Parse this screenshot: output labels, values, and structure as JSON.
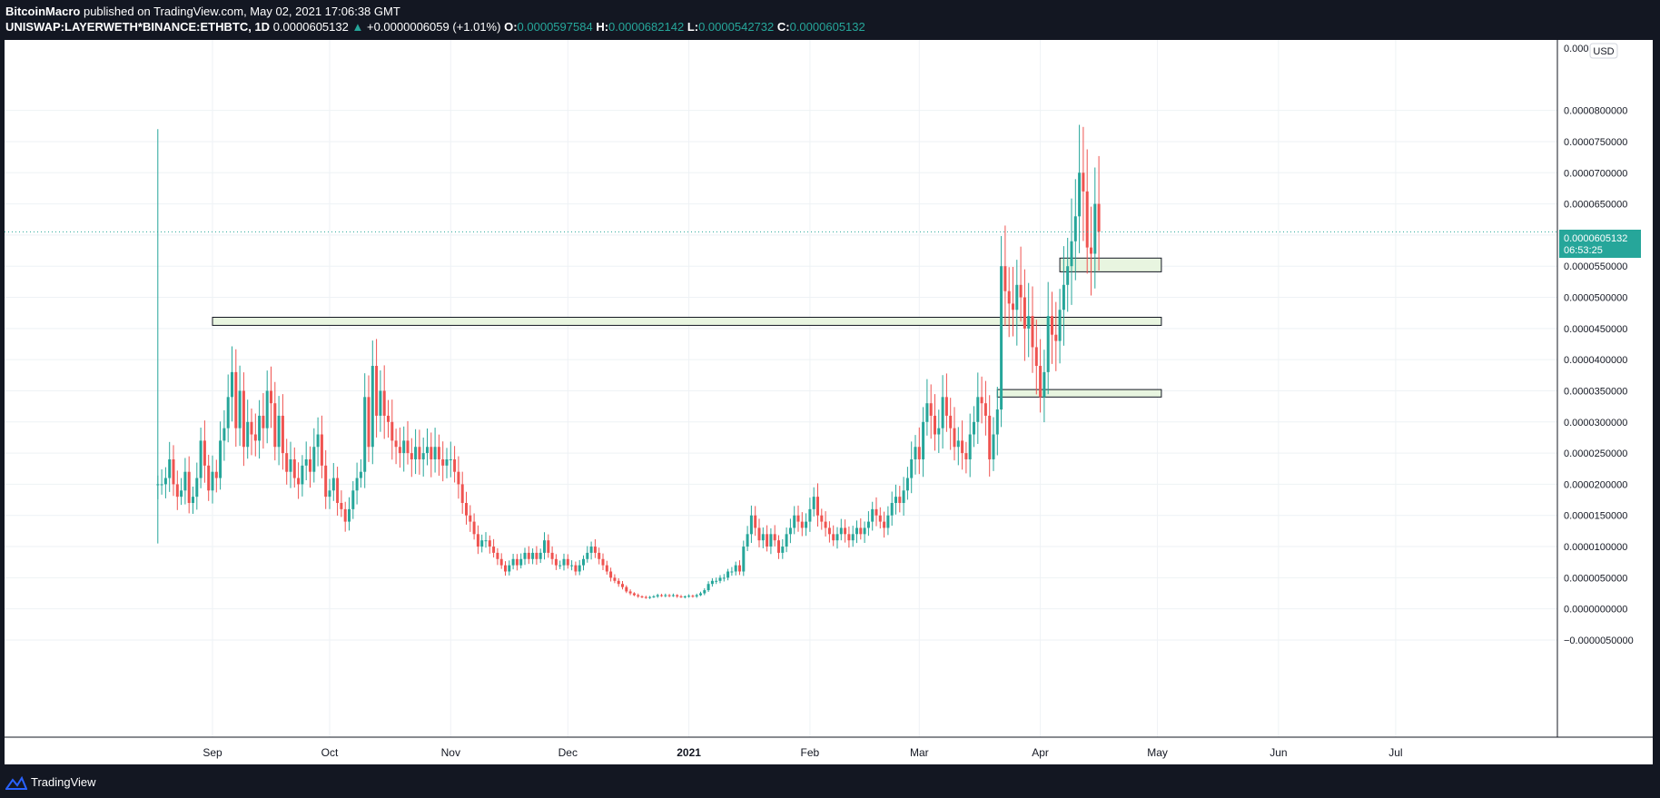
{
  "header": {
    "publisher": "BitcoinMacro",
    "published_text": "published on TradingView.com, May 02, 2021 17:06:38 GMT",
    "symbol": "UNISWAP:LAYERWETH*BINANCE:ETHBTC, 1D",
    "last_price": "0.0000605132",
    "change_arrow": "▲",
    "change": "+0.0000006059 (+1.01%)",
    "o_label": "O:",
    "o_value": "0.0000597584",
    "h_label": "H:",
    "h_value": "0.0000682142",
    "l_label": "L:",
    "l_value": "0.0000542732",
    "c_label": "C:",
    "c_value": "0.0000605132"
  },
  "price_scale": {
    "currency": "USD",
    "price_label": "0.0000605132",
    "countdown": "06:53:25"
  },
  "footer": {
    "brand": "TradingView"
  },
  "colors": {
    "up": "#26a69a",
    "down": "#ef5350",
    "zone_fill": "#e8f5e0",
    "grid": "#eef2f5",
    "background": "#ffffff",
    "frame": "#131722"
  },
  "chart_data": {
    "type": "candlestick",
    "title": "UNISWAP:LAYERWETH*BINANCE:ETHBTC, 1D",
    "ylim": [
      -5e-06,
      9e-05
    ],
    "y_ticks": [
      "0.0000800000",
      "0.0000750000",
      "0.0000700000",
      "0.0000650000",
      "0.0000600000",
      "0.0000550000",
      "0.0000500000",
      "0.0000450000",
      "0.0000400000",
      "0.0000350000",
      "0.0000300000",
      "0.0000250000",
      "0.0000200000",
      "0.0000150000",
      "0.0000100000",
      "0.0000050000",
      "0.0000000000",
      "−0.0000050000"
    ],
    "y_tick_values": [
      8e-05,
      7.5e-05,
      7e-05,
      6.5e-05,
      6e-05,
      5.5e-05,
      5e-05,
      4.5e-05,
      4e-05,
      3.5e-05,
      3e-05,
      2.5e-05,
      2e-05,
      1.5e-05,
      1e-05,
      5e-06,
      0,
      -5e-06
    ],
    "top_tick_partial": "0.000",
    "x_labels": [
      "Sep",
      "Oct",
      "Nov",
      "Dec",
      "2021",
      "Feb",
      "Mar",
      "Apr",
      "May",
      "Jun",
      "Jul"
    ],
    "x_label_days": [
      0,
      30,
      61,
      91,
      122,
      153,
      181,
      212,
      242,
      273,
      303
    ],
    "first_day": -14,
    "closes": [
      2e-05,
      2e-05,
      2.1e-05,
      2.4e-05,
      2e-05,
      1.8e-05,
      1.9e-05,
      2.2e-05,
      1.7e-05,
      1.8e-05,
      2.1e-05,
      2.7e-05,
      2.3e-05,
      1.9e-05,
      2.2e-05,
      2.1e-05,
      2.7e-05,
      2.9e-05,
      3.4e-05,
      3.8e-05,
      2.9e-05,
      3.5e-05,
      2.6e-05,
      3e-05,
      2.8e-05,
      2.7e-05,
      3.1e-05,
      2.9e-05,
      3.5e-05,
      3.3e-05,
      2.6e-05,
      3.1e-05,
      2.5e-05,
      2.2e-05,
      2.4e-05,
      2.1e-05,
      2e-05,
      2.3e-05,
      2.4e-05,
      2.2e-05,
      2.6e-05,
      2.8e-05,
      2.3e-05,
      1.8e-05,
      1.9e-05,
      2.1e-05,
      1.7e-05,
      1.6e-05,
      1.4e-05,
      1.6e-05,
      1.9e-05,
      2.1e-05,
      2.2e-05,
      3.4e-05,
      2.6e-05,
      3.9e-05,
      3.1e-05,
      3.5e-05,
      3.1e-05,
      3e-05,
      2.7e-05,
      2.6e-05,
      2.5e-05,
      2.7e-05,
      2.5e-05,
      2.4e-05,
      2.6e-05,
      2.4e-05,
      2.5e-05,
      2.6e-05,
      2.4e-05,
      2.6e-05,
      2.4e-05,
      2.3e-05,
      2.4e-05,
      2.4e-05,
      2.2e-05,
      2e-05,
      1.7e-05,
      1.5e-05,
      1.4e-05,
      1.2e-05,
      1e-05,
      1.1e-05,
      1.1e-05,
      1e-05,
      9e-06,
      8e-06,
      7e-06,
      6e-06,
      7e-06,
      8e-06,
      7e-06,
      8e-06,
      9e-06,
      8e-06,
      9e-06,
      8e-06,
      9e-06,
      1.1e-05,
      9e-06,
      8e-06,
      7e-06,
      7e-06,
      8e-06,
      7e-06,
      7e-06,
      6e-06,
      7e-06,
      8e-06,
      9e-06,
      1e-05,
      9e-06,
      8e-06,
      7e-06,
      6e-06,
      5e-06,
      4.5e-06,
      4e-06,
      3.5e-06,
      2.8e-06,
      2.5e-06,
      2.2e-06,
      2e-06,
      1.9e-06,
      1.8e-06,
      1.9e-06,
      2e-06,
      2.2e-06,
      2.1e-06,
      2.2e-06,
      2.1e-06,
      2.2e-06,
      2e-06,
      1.9e-06,
      2e-06,
      2.1e-06,
      2e-06,
      2.2e-06,
      2.5e-06,
      3e-06,
      4e-06,
      4.5e-06,
      4.5e-06,
      5e-06,
      5e-06,
      6e-06,
      6e-06,
      7e-06,
      6e-06,
      1e-05,
      1.2e-05,
      1.5e-05,
      1.3e-05,
      1.1e-05,
      1.2e-05,
      1e-05,
      1.2e-05,
      1.1e-05,
      9e-06,
      1e-05,
      1.2e-05,
      1.3e-05,
      1.5e-05,
      1.4e-05,
      1.3e-05,
      1.4e-05,
      1.6e-05,
      1.8e-05,
      1.5e-05,
      1.4e-05,
      1.3e-05,
      1.2e-05,
      1.1e-05,
      1.2e-05,
      1.3e-05,
      1.2e-05,
      1.1e-05,
      1.2e-05,
      1.3e-05,
      1.2e-05,
      1.3e-05,
      1.4e-05,
      1.6e-05,
      1.5e-05,
      1.4e-05,
      1.3e-05,
      1.5e-05,
      1.7e-05,
      1.8e-05,
      1.7e-05,
      1.9e-05,
      2.1e-05,
      2.4e-05,
      2.6e-05,
      2.4e-05,
      3e-05,
      3.3e-05,
      3.1e-05,
      2.8e-05,
      2.9e-05,
      3.4e-05,
      3.1e-05,
      2.9e-05,
      2.6e-05,
      2.7e-05,
      2.5e-05,
      2.4e-05,
      2.8e-05,
      3e-05,
      3.4e-05,
      3.3e-05,
      3.1e-05,
      2.4e-05,
      2.8e-05,
      3.2e-05,
      5.5e-05,
      5.1e-05,
      4.9e-05,
      4.8e-05,
      5.2e-05,
      5e-05,
      4.5e-05,
      4.7e-05,
      4.2e-05,
      3.9e-05,
      3.4e-05,
      3.8e-05,
      4.7e-05,
      4.4e-05,
      4.3e-05,
      4.8e-05,
      5.2e-05,
      5.5e-05,
      5.9e-05,
      6.3e-05,
      7e-05,
      6.7e-05,
      5.8e-05,
      5.7e-05,
      6.5e-05,
      6.05132e-05
    ]
  }
}
